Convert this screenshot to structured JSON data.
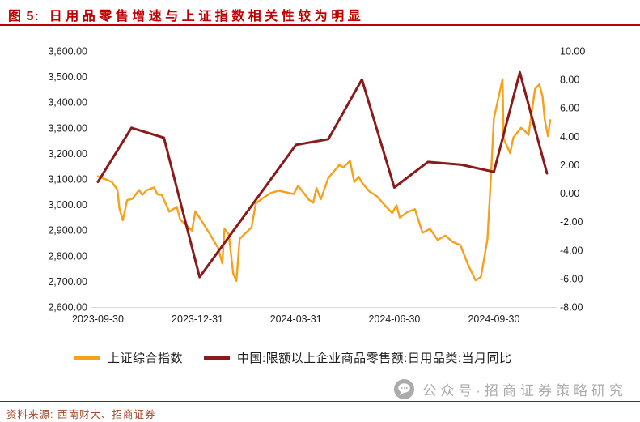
{
  "header": {
    "figure_label": "图 5:",
    "title": "日用品零售增速与上证指数相关性较为明显"
  },
  "colors": {
    "accent_red": "#C00000",
    "series_orange": "#F9A01B",
    "series_maroon": "#8B1A1A",
    "axis_text": "#1f1f1f",
    "axis_line": "#d9d9d9",
    "source_text": "#A3452A",
    "watermark_gray": "#ABABAB"
  },
  "chart_data": {
    "type": "line",
    "title": "日用品零售增速与上证指数相关性较为明显",
    "grid": false,
    "legend_position": "bottom",
    "x_axis": {
      "domain_days": [
        0,
        421
      ],
      "tick_days": [
        0,
        92,
        183,
        274,
        366
      ],
      "tick_labels": [
        "2023-09-30",
        "2023-12-31",
        "2024-03-31",
        "2024-06-30",
        "2024-09-30"
      ]
    },
    "left_axis": {
      "min": 2600,
      "max": 3600,
      "step": 100,
      "labels": [
        "3,600.00",
        "3,500.00",
        "3,400.00",
        "3,300.00",
        "3,200.00",
        "3,100.00",
        "3,000.00",
        "2,900.00",
        "2,800.00",
        "2,700.00",
        "2,600.00"
      ]
    },
    "right_axis": {
      "min": -8,
      "max": 10,
      "step": 2,
      "labels": [
        "10.00",
        "8.00",
        "6.00",
        "4.00",
        "2.00",
        "0.00",
        "-2.00",
        "-4.00",
        "-6.00",
        "-8.00"
      ]
    },
    "series": [
      {
        "name": "上证综合指数",
        "axis": "left",
        "color": "#F9A01B",
        "points": [
          [
            0,
            3110
          ],
          [
            9,
            3096
          ],
          [
            13,
            3088
          ],
          [
            18,
            3058
          ],
          [
            20,
            2983
          ],
          [
            23,
            2939
          ],
          [
            27,
            3017
          ],
          [
            32,
            3023
          ],
          [
            38,
            3057
          ],
          [
            41,
            3038
          ],
          [
            45,
            3056
          ],
          [
            52,
            3067
          ],
          [
            55,
            3040
          ],
          [
            59,
            3038
          ],
          [
            66,
            2972
          ],
          [
            73,
            2991
          ],
          [
            76,
            2942
          ],
          [
            83,
            2914
          ],
          [
            87,
            2898
          ],
          [
            90,
            2974
          ],
          [
            97,
            2929
          ],
          [
            104,
            2881
          ],
          [
            111,
            2832
          ],
          [
            115,
            2770
          ],
          [
            117,
            2906
          ],
          [
            121,
            2883
          ],
          [
            125,
            2730
          ],
          [
            128,
            2702
          ],
          [
            131,
            2866
          ],
          [
            142,
            2911
          ],
          [
            146,
            3005
          ],
          [
            153,
            3027
          ],
          [
            160,
            3046
          ],
          [
            167,
            3054
          ],
          [
            174,
            3048
          ],
          [
            181,
            3041
          ],
          [
            185,
            3074
          ],
          [
            195,
            3019
          ],
          [
            199,
            3007
          ],
          [
            202,
            3065
          ],
          [
            206,
            3021
          ],
          [
            213,
            3104
          ],
          [
            223,
            3154
          ],
          [
            227,
            3146
          ],
          [
            233,
            3171
          ],
          [
            237,
            3088
          ],
          [
            241,
            3109
          ],
          [
            244,
            3086
          ],
          [
            251,
            3051
          ],
          [
            258,
            3032
          ],
          [
            265,
            2998
          ],
          [
            272,
            2967
          ],
          [
            276,
            2997
          ],
          [
            279,
            2949
          ],
          [
            286,
            2971
          ],
          [
            293,
            2982
          ],
          [
            300,
            2890
          ],
          [
            307,
            2905
          ],
          [
            314,
            2862
          ],
          [
            321,
            2879
          ],
          [
            328,
            2854
          ],
          [
            335,
            2842
          ],
          [
            342,
            2766
          ],
          [
            349,
            2704
          ],
          [
            354,
            2717
          ],
          [
            360,
            2863
          ],
          [
            363,
            3088
          ],
          [
            366,
            3336
          ],
          [
            374,
            3490
          ],
          [
            375,
            3258
          ],
          [
            381,
            3201
          ],
          [
            384,
            3262
          ],
          [
            391,
            3300
          ],
          [
            395,
            3286
          ],
          [
            398,
            3272
          ],
          [
            404,
            3452
          ],
          [
            408,
            3470
          ],
          [
            411,
            3421
          ],
          [
            413,
            3331
          ],
          [
            416,
            3267
          ],
          [
            418,
            3330
          ]
        ]
      },
      {
        "name": "中国:限额以上企业商品零售额:日用品类:当月同比",
        "axis": "right",
        "color": "#8B1A1A",
        "points": [
          [
            0,
            0.8
          ],
          [
            31,
            4.6
          ],
          [
            61,
            3.9
          ],
          [
            94,
            -5.9
          ],
          [
            183,
            3.4
          ],
          [
            213,
            3.8
          ],
          [
            244,
            8.0
          ],
          [
            274,
            0.4
          ],
          [
            305,
            2.2
          ],
          [
            336,
            2.0
          ],
          [
            366,
            1.5
          ],
          [
            390,
            8.5
          ],
          [
            415,
            1.4
          ]
        ]
      }
    ]
  },
  "watermark": {
    "text": "公众号·招商证券策略研究"
  },
  "footer": {
    "source": "资料来源: 西南财大、招商证券"
  }
}
